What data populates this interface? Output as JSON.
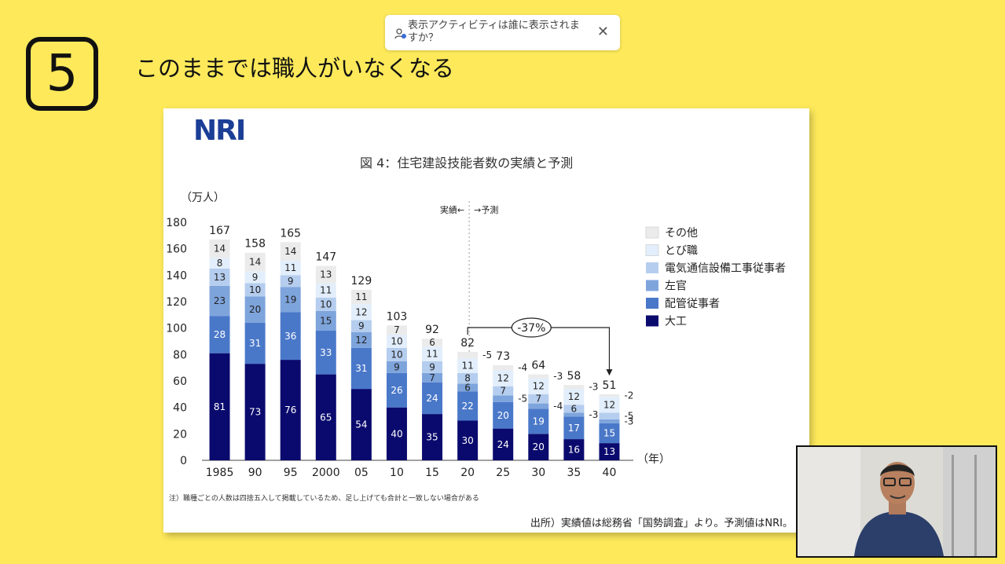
{
  "slide": {
    "number": "5",
    "title": "このままでは職人がいなくなる"
  },
  "toast": {
    "icon": "person-activity-icon",
    "text": "表示アクティビティは誰に表示されますか？",
    "close_icon": "close-icon"
  },
  "panel": {
    "logo_text": "NRI",
    "chart_title": "図 4：住宅建設技能者数の実績と予測",
    "note": "注）職種ごとの人数は四捨五入して掲載しているため、足し上げても合計と一致しない場合がある",
    "source": "出所）実績値は総務省「国勢調査」より。予測値はNRI。"
  },
  "chart_data": {
    "type": "bar",
    "stacked": true,
    "ylabel": "（万人）",
    "xlabel": "（年）",
    "ylim": [
      0,
      180
    ],
    "yticks": [
      0,
      20,
      40,
      60,
      80,
      100,
      120,
      140,
      160,
      180
    ],
    "categories": [
      "1985",
      "90",
      "95",
      "2000",
      "05",
      "10",
      "15",
      "20",
      "25",
      "30",
      "35",
      "40"
    ],
    "totals": [
      167,
      158,
      165,
      147,
      129,
      103,
      92,
      82,
      73,
      64,
      58,
      51
    ],
    "series": [
      {
        "name": "大工",
        "color": "#0a0a6e",
        "values": [
          81,
          73,
          76,
          65,
          54,
          40,
          35,
          30,
          24,
          20,
          16,
          13
        ]
      },
      {
        "name": "配管従事者",
        "color": "#4a78c9",
        "values": [
          28,
          31,
          36,
          33,
          31,
          26,
          24,
          22,
          20,
          19,
          17,
          15
        ]
      },
      {
        "name": "左官",
        "color": "#7ea4dc",
        "values": [
          23,
          20,
          19,
          15,
          12,
          9,
          7,
          6,
          5,
          4,
          3,
          3
        ]
      },
      {
        "name": "電気通信設備工事従事者",
        "color": "#b5cdee",
        "values": [
          13,
          10,
          9,
          10,
          9,
          10,
          9,
          8,
          7,
          7,
          6,
          5
        ]
      },
      {
        "name": "とび職",
        "color": "#e2eefb",
        "values": [
          8,
          9,
          11,
          11,
          12,
          10,
          11,
          11,
          12,
          12,
          12,
          12
        ]
      },
      {
        "name": "その他",
        "color": "#ebebeb",
        "values": [
          14,
          14,
          14,
          13,
          11,
          7,
          6,
          5,
          4,
          3,
          3,
          2
        ]
      }
    ],
    "legend_position": "right",
    "divider": {
      "left_label": "実績←",
      "right_label": "→予測"
    },
    "annotation": {
      "text": "-37%",
      "from": "20",
      "to": "40"
    }
  }
}
